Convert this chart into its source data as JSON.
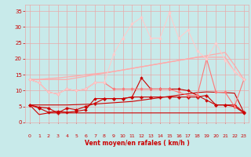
{
  "x": [
    0,
    1,
    2,
    3,
    4,
    5,
    6,
    7,
    8,
    9,
    10,
    11,
    12,
    13,
    14,
    15,
    16,
    17,
    18,
    19,
    20,
    21,
    22,
    23
  ],
  "series": [
    {
      "name": "flat_dark_bottom",
      "color": "#cc0000",
      "linewidth": 0.8,
      "marker": null,
      "y": [
        5.5,
        2.5,
        3.0,
        3.0,
        3.0,
        3.0,
        3.0,
        3.0,
        3.0,
        3.0,
        3.0,
        3.0,
        3.0,
        3.0,
        3.0,
        3.0,
        3.0,
        3.0,
        3.0,
        3.0,
        3.0,
        3.0,
        3.0,
        3.0
      ]
    },
    {
      "name": "slope_dark",
      "color": "#cc0000",
      "linewidth": 0.8,
      "marker": null,
      "y": [
        5.5,
        5.5,
        5.5,
        5.5,
        5.5,
        5.6,
        5.7,
        5.8,
        6.0,
        6.2,
        6.4,
        6.6,
        7.0,
        7.4,
        7.8,
        8.2,
        8.6,
        9.0,
        9.4,
        9.6,
        9.5,
        9.4,
        9.2,
        3.2
      ]
    },
    {
      "name": "marker_dark_diamond",
      "color": "#cc0000",
      "linewidth": 0.8,
      "marker": "D",
      "markersize": 1.8,
      "y": [
        5.5,
        4.5,
        3.2,
        3.5,
        3.2,
        3.5,
        4.0,
        7.5,
        7.5,
        7.5,
        7.5,
        8.0,
        14.0,
        10.5,
        10.5,
        10.5,
        10.5,
        10.0,
        8.5,
        7.0,
        5.5,
        5.5,
        5.0,
        3.0
      ]
    },
    {
      "name": "marker_dark_cross",
      "color": "#cc0000",
      "linewidth": 0.8,
      "marker": "P",
      "markersize": 2.5,
      "y": [
        5.5,
        4.8,
        4.5,
        3.0,
        4.5,
        4.0,
        5.0,
        6.0,
        7.5,
        7.5,
        7.5,
        8.0,
        8.0,
        8.0,
        8.0,
        8.0,
        8.0,
        8.0,
        8.0,
        8.5,
        5.5,
        5.5,
        5.5,
        3.2
      ]
    },
    {
      "name": "pink_slope_upper",
      "color": "#ffaaaa",
      "linewidth": 0.9,
      "marker": null,
      "y": [
        13.5,
        13.5,
        13.8,
        14.0,
        14.3,
        14.6,
        15.0,
        15.3,
        15.6,
        16.0,
        16.5,
        17.0,
        17.5,
        18.0,
        18.5,
        19.0,
        19.5,
        20.0,
        20.5,
        21.0,
        21.5,
        22.0,
        18.0,
        13.5
      ]
    },
    {
      "name": "pink_slope_lower",
      "color": "#ffaaaa",
      "linewidth": 0.9,
      "marker": null,
      "y": [
        13.5,
        13.5,
        13.5,
        13.5,
        13.5,
        14.0,
        14.5,
        15.0,
        15.5,
        16.0,
        16.5,
        17.0,
        17.5,
        18.0,
        18.5,
        19.0,
        19.5,
        20.0,
        20.5,
        20.5,
        20.5,
        20.5,
        16.0,
        13.5
      ]
    },
    {
      "name": "pink_marker_line",
      "color": "#ff7777",
      "linewidth": 0.8,
      "marker": "D",
      "markersize": 1.8,
      "y": [
        13.5,
        12.5,
        9.5,
        9.0,
        10.5,
        10.0,
        10.5,
        12.5,
        12.5,
        10.5,
        10.5,
        10.5,
        10.5,
        10.5,
        10.5,
        10.5,
        9.5,
        8.5,
        8.5,
        20.0,
        9.5,
        9.5,
        5.0,
        13.5
      ]
    },
    {
      "name": "lightpink_spike",
      "color": "#ffcccc",
      "linewidth": 0.8,
      "marker": "D",
      "markersize": 1.8,
      "y": [
        13.5,
        12.5,
        9.5,
        9.0,
        10.5,
        10.0,
        10.5,
        12.5,
        12.5,
        21.5,
        26.5,
        31.0,
        33.0,
        26.5,
        26.5,
        34.5,
        26.5,
        29.0,
        22.5,
        20.0,
        25.0,
        19.5,
        16.0,
        13.5
      ]
    }
  ],
  "xlim": [
    -0.5,
    23.5
  ],
  "ylim": [
    0,
    37
  ],
  "yticks": [
    0,
    5,
    10,
    15,
    20,
    25,
    30,
    35
  ],
  "xticks": [
    0,
    1,
    2,
    3,
    4,
    5,
    6,
    7,
    8,
    9,
    10,
    11,
    12,
    13,
    14,
    15,
    16,
    17,
    18,
    19,
    20,
    21,
    22,
    23
  ],
  "xlabel": "Vent moyen/en rafales ( km/h )",
  "bg_color": "#c8eaea",
  "grid_color": "#e8aaaa",
  "tick_color": "#cc0000",
  "label_color": "#cc0000",
  "arrow_char": "↗"
}
